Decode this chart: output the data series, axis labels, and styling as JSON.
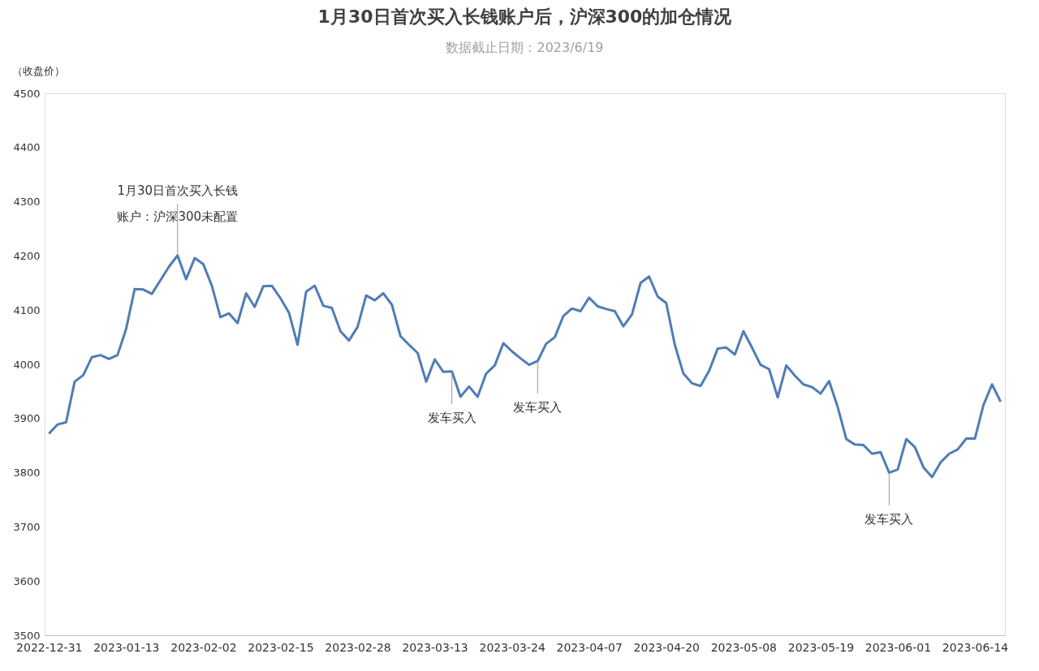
{
  "chart_data": {
    "type": "line",
    "title": "1月30日首次买入长钱账户后，沪深300的加仓情况",
    "subtitle": "数据截止日期：2023/6/19",
    "ylabel": "（收盘价）",
    "categories": [
      "2022-12-31",
      null,
      null,
      null,
      null,
      null,
      null,
      null,
      null,
      "2023-01-13",
      null,
      null,
      null,
      null,
      null,
      null,
      null,
      null,
      "2023-02-02",
      null,
      null,
      null,
      null,
      null,
      null,
      null,
      null,
      "2023-02-15",
      null,
      null,
      null,
      null,
      null,
      null,
      null,
      null,
      "2023-02-28",
      null,
      null,
      null,
      null,
      null,
      null,
      null,
      null,
      "2023-03-13",
      null,
      null,
      null,
      null,
      null,
      null,
      null,
      null,
      "2023-03-24",
      null,
      null,
      null,
      null,
      null,
      null,
      null,
      null,
      "2023-04-07",
      null,
      null,
      null,
      null,
      null,
      null,
      null,
      null,
      "2023-04-20",
      null,
      null,
      null,
      null,
      null,
      null,
      null,
      null,
      "2023-05-08",
      null,
      null,
      null,
      null,
      null,
      null,
      null,
      null,
      "2023-05-19",
      null,
      null,
      null,
      null,
      null,
      null,
      null,
      null,
      "2023-06-01",
      null,
      null,
      null,
      null,
      null,
      null,
      null,
      null,
      "2023-06-14",
      null,
      null,
      null
    ],
    "series": [
      {
        "color": "#4f7db5",
        "values": [
          3872,
          3889,
          3893,
          3968,
          3980,
          4013,
          4017,
          4010,
          4017,
          4065,
          4139,
          4138,
          4130,
          4155,
          4180,
          4201,
          4157,
          4196,
          4185,
          4145,
          4087,
          4094,
          4076,
          4131,
          4106,
          4144,
          4145,
          4122,
          4095,
          4036,
          4134,
          4145,
          4108,
          4104,
          4061,
          4044,
          4069,
          4127,
          4118,
          4131,
          4110,
          4052,
          4036,
          4021,
          3968,
          4009,
          3986,
          3987,
          3940,
          3959,
          3940,
          3983,
          3998,
          4039,
          4024,
          4011,
          3999,
          4006,
          4038,
          4050,
          4089,
          4103,
          4098,
          4123,
          4107,
          4102,
          4098,
          4070,
          4092,
          4150,
          4162,
          4125,
          4113,
          4036,
          3983,
          3965,
          3960,
          3988,
          4029,
          4031,
          4018,
          4061,
          4031,
          3999,
          3991,
          3939,
          3998,
          3979,
          3963,
          3958,
          3946,
          3969,
          3921,
          3862,
          3852,
          3851,
          3835,
          3838,
          3800,
          3806,
          3862,
          3847,
          3810,
          3792,
          3819,
          3835,
          3843,
          3863,
          3863,
          3925,
          3963,
          3931
        ]
      }
    ],
    "ylim": [
      3500,
      4500
    ],
    "yticks": [
      3500,
      3600,
      3700,
      3800,
      3900,
      4000,
      4100,
      4200,
      4300,
      4400,
      4500
    ],
    "grid": false,
    "legend": false,
    "annotations": [
      {
        "text": "1月30日首次买入长钱账户：沪深300未配置",
        "y": 4201
      },
      {
        "text": "发车买入",
        "y": 4006
      },
      {
        "text": "发车买入",
        "y": 3987
      },
      {
        "text": "发车买入",
        "y": 3800
      }
    ]
  }
}
